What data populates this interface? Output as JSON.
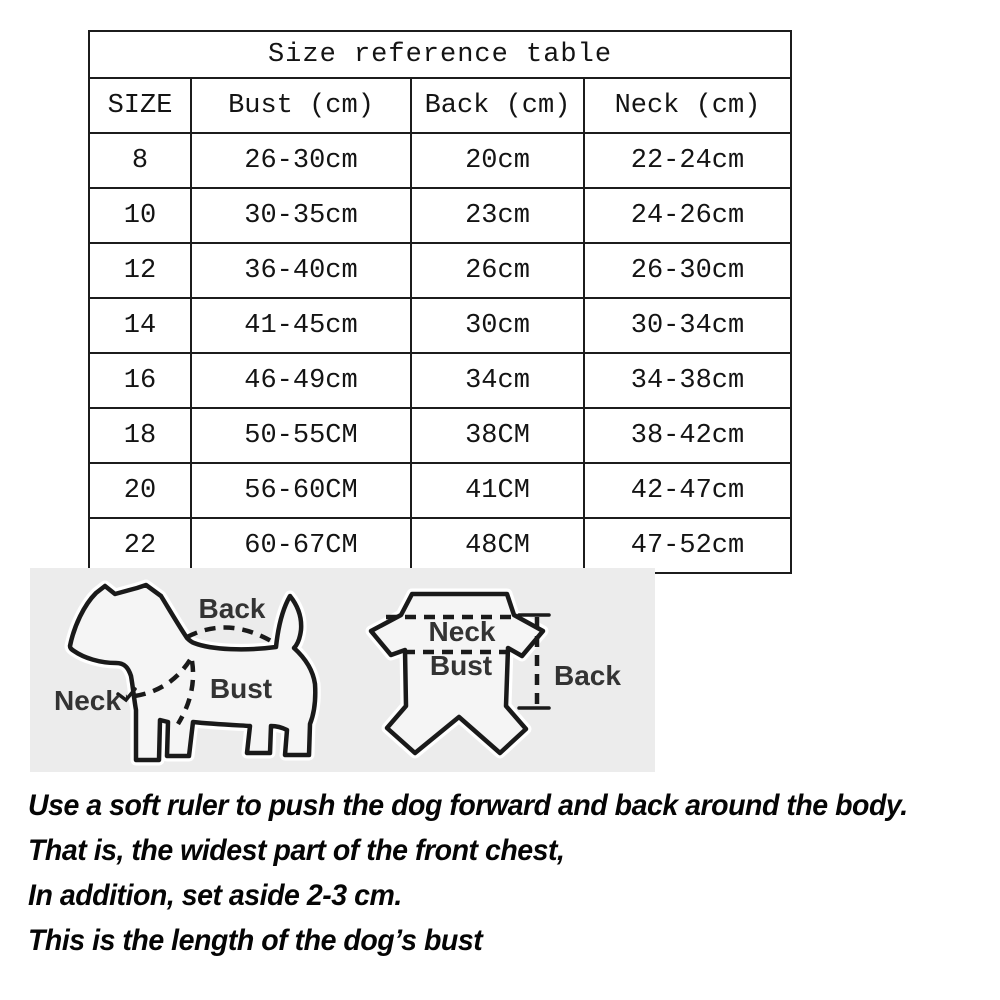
{
  "table": {
    "title": "Size reference table",
    "headers": [
      "SIZE",
      "Bust (cm)",
      "Back (cm)",
      "Neck (cm)"
    ],
    "rows": [
      [
        "8",
        "26-30cm",
        "20cm",
        "22-24cm"
      ],
      [
        "10",
        "30-35cm",
        "23cm",
        "24-26cm"
      ],
      [
        "12",
        "36-40cm",
        "26cm",
        "26-30cm"
      ],
      [
        "14",
        "41-45cm",
        "30cm",
        "30-34cm"
      ],
      [
        "16",
        "46-49cm",
        "34cm",
        "34-38cm"
      ],
      [
        "18",
        "50-55CM",
        "38CM",
        "38-42cm"
      ],
      [
        "20",
        "56-60CM",
        "41CM",
        "42-47cm"
      ],
      [
        "22",
        "60-67CM",
        "48CM",
        "47-52cm"
      ]
    ]
  },
  "diagram": {
    "panel_bg": "#ececec",
    "dog_labels": {
      "back": "Back",
      "neck": "Neck",
      "bust": "Bust"
    },
    "garment_labels": {
      "neck": "Neck",
      "bust": "Bust",
      "back": "Back"
    }
  },
  "instructions": {
    "lines": [
      "Use a soft ruler to push the dog forward and back around the body.",
      "That is, the widest part of the front chest,",
      "In addition, set aside 2-3 cm.",
      "This is the length of the dog’s bust"
    ]
  },
  "colors": {
    "table_border": "#1c1c1c",
    "panel_bg": "#ececec",
    "label_text": "#333333",
    "body_text": "#050505"
  }
}
